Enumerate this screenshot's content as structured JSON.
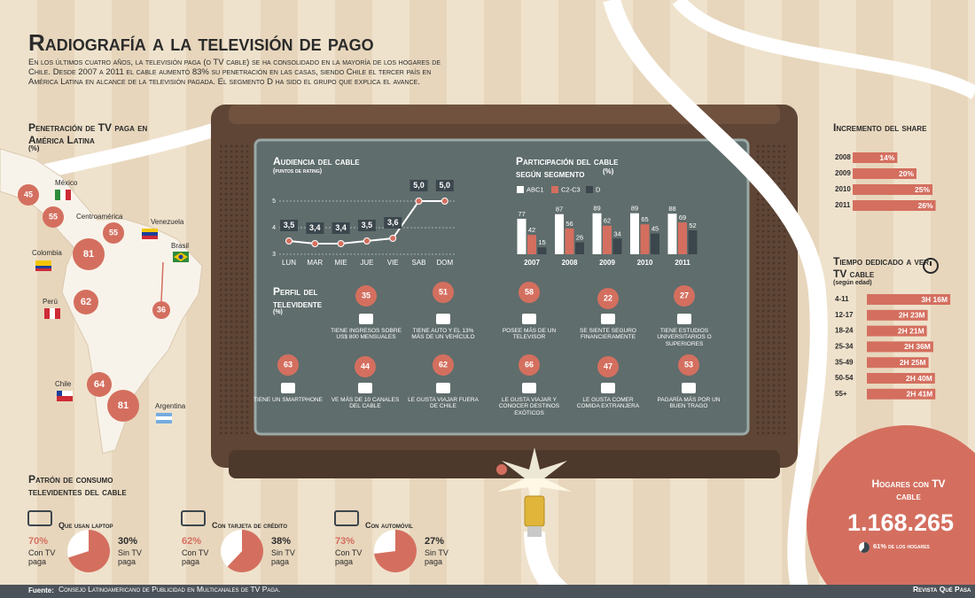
{
  "header": {
    "title": "Radiografía a la televisión de pago",
    "intro": "En los últimos cuatro años, la televisión paga (o TV cable) se ha consolidado en la mayoría de los hogares de Chile. Desde 2007 a 2011 el cable aumentó 83% su penetración en las casas, siendo Chile el tercer país en América Latina en alcance de la televisión pagada. El segmento D ha sido el grupo que explica el avance."
  },
  "chart_data": [
    {
      "type": "map",
      "title": "Penetración de TV paga en América Latina",
      "unit": "(%)",
      "categories": [
        "México",
        "Centroamérica",
        "Venezuela",
        "Colombia",
        "Brasil",
        "Perú",
        "Chile",
        "Argentina"
      ],
      "values": [
        45,
        55,
        55,
        81,
        36,
        62,
        64,
        81
      ],
      "color": "#d46f5f"
    },
    {
      "type": "line",
      "title": "Audiencia del cable",
      "subtitle": "(puntos de rating)",
      "categories": [
        "LUN",
        "MAR",
        "MIE",
        "JUE",
        "VIE",
        "SAB",
        "DOM"
      ],
      "values": [
        3.5,
        3.4,
        3.4,
        3.5,
        3.6,
        5.0,
        5.0
      ],
      "value_labels": [
        "3,5",
        "3,4",
        "3,4",
        "3,5",
        "3,6",
        "5,0",
        "5,0"
      ],
      "ylim": [
        3,
        5
      ],
      "yticks": [
        3,
        4,
        5
      ],
      "grid": true,
      "color": "#ffffff",
      "marker_color": "#d46f5f"
    },
    {
      "type": "grouped_bar",
      "title": "Participación del cable según segmento",
      "unit": "(%)",
      "categories": [
        "2007",
        "2008",
        "2009",
        "2010",
        "2011"
      ],
      "series": [
        {
          "name": "ABC1",
          "color": "#ffffff",
          "values": [
            77,
            87,
            89,
            89,
            88
          ]
        },
        {
          "name": "C2-C3",
          "color": "#d46f5f",
          "values": [
            42,
            56,
            62,
            65,
            69
          ]
        },
        {
          "name": "D",
          "color": "#3b464d",
          "values": [
            15,
            26,
            34,
            45,
            52
          ]
        }
      ],
      "ylim": [
        0,
        100
      ]
    },
    {
      "type": "icon_stats",
      "title": "Perfil del televidente",
      "unit": "(%)",
      "color": "#d46f5f",
      "items": [
        {
          "value": 35,
          "label": "Tiene ingresos sobre US$ 800 mensuales"
        },
        {
          "value": 51,
          "label": "Tiene auto y el 13% más de un vehículo"
        },
        {
          "value": 58,
          "label": "Posee más de un televisor"
        },
        {
          "value": 22,
          "label": "Se siente seguro financieramente"
        },
        {
          "value": 27,
          "label": "Tiene estudios universitarios o superiores"
        },
        {
          "value": 63,
          "label": "Tiene un smartphone"
        },
        {
          "value": 44,
          "label": "Ve más de 10 canales del cable"
        },
        {
          "value": 62,
          "label": "Le gusta viajar fuera de Chile"
        },
        {
          "value": 66,
          "label": "Le gusta viajar y conocer destinos exóticos"
        },
        {
          "value": 47,
          "label": "Le gusta comer comida extranjera"
        },
        {
          "value": 53,
          "label": "Pagaría más por un buen trago"
        }
      ]
    },
    {
      "type": "hbar",
      "title": "Incremento del share",
      "categories": [
        "2008",
        "2009",
        "2010",
        "2011"
      ],
      "values": [
        14,
        20,
        25,
        26
      ],
      "value_labels": [
        "14%",
        "20%",
        "25%",
        "26%"
      ],
      "xlim": [
        0,
        30
      ],
      "color": "#d46f5f"
    },
    {
      "type": "hbar",
      "title": "Tiempo dedicado a ver TV cable",
      "subtitle": "(según edad)",
      "categories": [
        "4-11",
        "12-17",
        "18-24",
        "25-34",
        "35-49",
        "50-54",
        "55+"
      ],
      "values": [
        196,
        143,
        141,
        156,
        145,
        160,
        161
      ],
      "value_labels": [
        "3H 16M",
        "2H 23M",
        "2H 21M",
        "2H 36M",
        "2H 25M",
        "2H 40M",
        "2H 41M"
      ],
      "xlim": [
        0,
        200
      ],
      "color": "#d46f5f"
    },
    {
      "type": "kpi",
      "title": "Hogares con TV cable",
      "value": 1168265,
      "value_label": "1.168.265",
      "share": 61,
      "share_label": "61% de los hogares",
      "color": "#d46f5f"
    },
    {
      "type": "pies",
      "title": "Patrón de consumo televidentes del cable",
      "labels": [
        "Con TV paga",
        "Sin TV paga"
      ],
      "colors": [
        "#d46f5f",
        "#ffffff"
      ],
      "items": [
        {
          "name": "Que usan laptop",
          "values": [
            70,
            30
          ],
          "value_labels": [
            "70%",
            "30%"
          ]
        },
        {
          "name": "Con tarjeta de crédito",
          "values": [
            62,
            38
          ],
          "value_labels": [
            "62%",
            "38%"
          ]
        },
        {
          "name": "Con automóvil",
          "values": [
            73,
            27
          ],
          "value_labels": [
            "73%",
            "27%"
          ]
        }
      ]
    }
  ],
  "footer": {
    "source_label": "Fuente:",
    "source": "Consejo Latinoamericano de Publicidad en Multicanales de TV Paga.",
    "publisher": "Revista Qué Pasa"
  }
}
